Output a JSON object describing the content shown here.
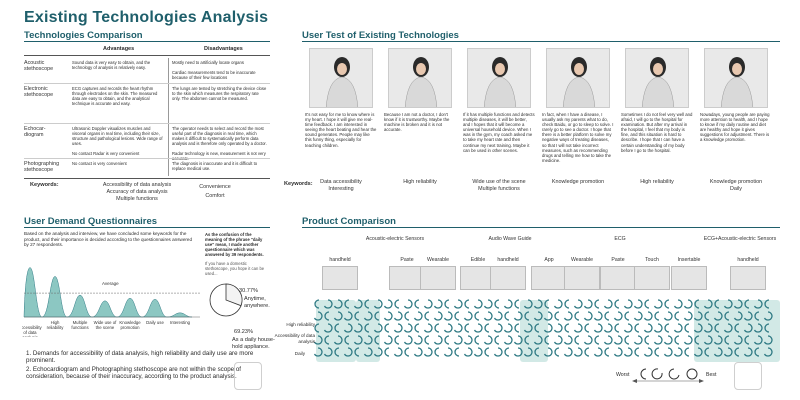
{
  "title": "Existing Technologies Analysis",
  "tech": {
    "title": "Technologies Comparison",
    "col_adv": "Advantages",
    "col_dis": "Disadvantages",
    "rows": [
      {
        "name": "Acoustic stethoscope",
        "adv": "Sound data is very easy to obtain, and the technology of analysis is relatively easy.",
        "dis": "Mostly need to artificially locate organs\n\nCardiac measurements tend to be inaccurate because of their few locations"
      },
      {
        "name": "Electronic stethoscope",
        "adv": "ECG captures and records the heart rhythm through electrodes on the skin. The measured data are easy to obtain, and the analytical technique is accurate and easy.",
        "dis": "The lungs are tested by stretching the device close to the skin which measures the respiratory rate only. The abdomen cannot be measured."
      },
      {
        "name": "Echocar-diogram",
        "adv": "Ultrasonic Doppler visualizes muscles and visceral organs in real time, including their size, structure and pathological lesions. Wide range of uses.\n\nNo contact Radar is very convenient",
        "dis": "The operator needs to select and record the most useful part of the diagnosis in real time, which makes it difficult to systematically perform data analysis and is therefore only operated by a doctor.\n\nRadar technology is new, measurement is not very accurate."
      },
      {
        "name": "Photographing stethoscope",
        "adv": "No contact is very convenient",
        "dis": "The diagnosis is inaccurate and it is difficult to replace medical use."
      }
    ],
    "kw_label": "Keywords:",
    "kw_left": [
      "Accessibility of data analysis",
      "Accuracy of data analysis",
      "Multiple functions"
    ],
    "kw_right": [
      "Convenience",
      "Comfort"
    ]
  },
  "user_test": {
    "title": "User Test of Existing Technologies",
    "quotes": [
      "It's not easy for me to know where is my heart. I hope it will give me real-time feedback. I am interested in seeing the heart beating and hear the sound generates. People may like this funny thing, especially for teaching children.",
      "Because I am not a doctor, I don't know if it is trustworthy. Maybe the machine is broken and it is not accurate.",
      "If it has multiple functions and detects multiple diseases, it will be better, and I hopes that it will become a universal household device. When I was in the gym, my coach asked me to take my heart rate and then continue my next training. Maybe it can be used in other scenes.",
      "In fact, when I have a disease, I usually ask my parents what to do, check Baidu, or go to sleep to solve. I rarely go to see a doctor. I hope that there is a better platform to solve my negative ways of treating diseases, so that I will not take incorrect measures, such as recommending drugs and telling me how to take the medicine.",
      "Sometimes I do not feel very well and afraid, I will go to the hospital for examination. But after my arrival in the hospital, I feel that my body is fine, and this situation is hard to describe. I hope that I can have a certain understanding of my body before I go to the hospital.",
      "Nowadays, young people are paying more attention to health, and I hope to know if my daily routine and diet are healthy and hope it gives suggestions for adjustment. There is a knowledge promotion."
    ],
    "kw_label": "Keywords:",
    "keywords": [
      "Data accessibility\nInteresting",
      "High reliability",
      "Wide use of the scene\nMultiple functions",
      "Knowledge promotion",
      "High reliability",
      "Knowledge promotion\nDaily"
    ]
  },
  "questionnaire": {
    "title": "User Demand Questionnaires",
    "intro": "Based on the analysis and interview, we have concluded some keywords for the product, and their importance is decided according to the questionnaires answered by 27 respondents.",
    "avg_label": "Average",
    "chart_data": {
      "type": "area",
      "categories": [
        "Accessibility of data analysis",
        "High reliability",
        "Multiple functions",
        "Wide use of the scene",
        "Knowledge promotion",
        "Daily use",
        "Interesting"
      ],
      "values": [
        9.5,
        7.8,
        4.2,
        3.1,
        3.6,
        3.4,
        0.8
      ],
      "average": 4.6,
      "title": "",
      "xlabel": "",
      "ylabel": ""
    },
    "confusion_title": "As the confusion of the meaning of the phrase \"daily use\" mean, I made another questionnaire which was answered by 39 respondents.",
    "confusion_q": "If you have a domestic stethoscope, you hope it can be used...",
    "pie": {
      "pct_a": "30.77%",
      "label_a": "Anytime, anywhere.",
      "pct_b": "69.23%",
      "label_b": "As a daily house-hold appliance.",
      "value_a": 30.77,
      "value_b": 69.23
    },
    "conclusion_1": "1. Demands for accessibility of data analysis, high reliability and daily use are more prominent.",
    "conclusion_2": "2. Echocardiogram and Photographing stethoscope are not within the scope of consideration, because of their inaccuracy, according to the product analysis."
  },
  "product": {
    "title": "Product Comparison",
    "groups": [
      "Acoustic-electric Sensors",
      "Audio Wave Guide",
      "ECG",
      "ECG+Acoustic-electric Sensors"
    ],
    "items": [
      "handheld",
      "Paste",
      "Wearable",
      "Edible",
      "handheld",
      "App",
      "Wearable",
      "Paste",
      "Touch",
      "Insertable",
      "handheld"
    ],
    "metrics": [
      "High reliability",
      "Accessibility of data analysis",
      "Daily"
    ],
    "scale_worst": "Worst",
    "scale_best": "Best"
  },
  "colors": {
    "accent": "#1f5f6b",
    "teal_fill": "#8cc7c2",
    "teal_dark": "#2f7a84"
  }
}
